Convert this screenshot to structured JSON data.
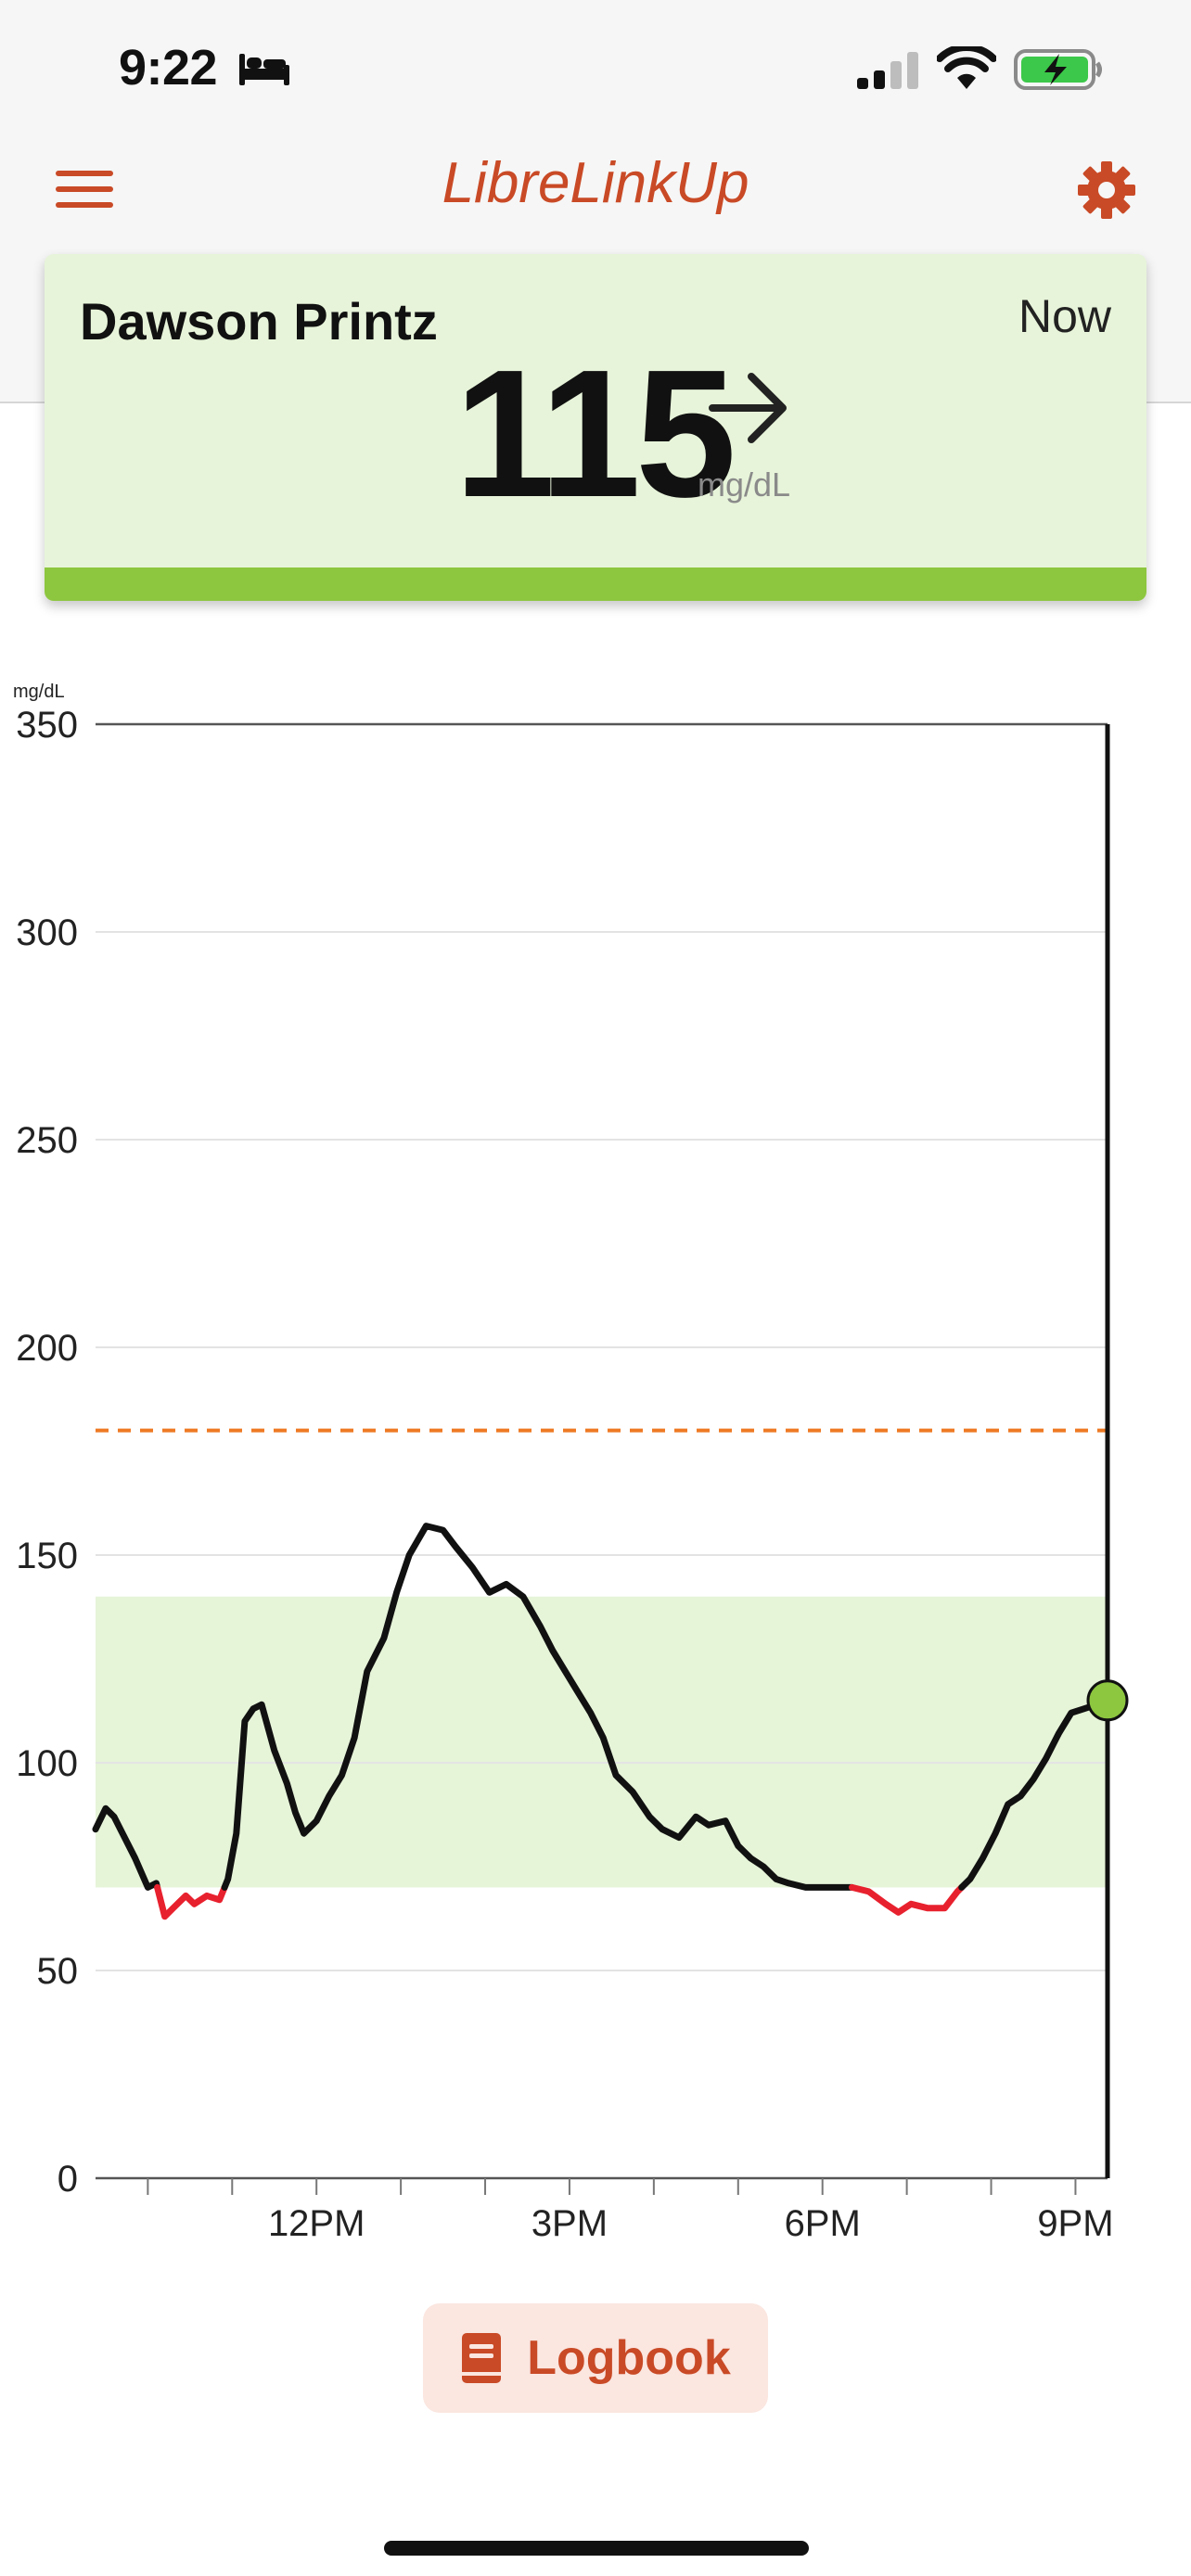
{
  "status_bar": {
    "time": "9:22",
    "icons": [
      "bed-icon",
      "signal-icon",
      "wifi-icon",
      "battery-charging-icon"
    ]
  },
  "nav": {
    "title": "LibreLinkUp",
    "icons": [
      "menu-icon",
      "settings-icon"
    ]
  },
  "colors": {
    "accent": "#c94a26",
    "in_range": "#8dc63f",
    "card_bg": "#e7f4d9",
    "target_band": "#e6f4d8",
    "low": "#e8212e",
    "high_limit": "#ee7a23",
    "line": "#111111"
  },
  "card": {
    "name": "Dawson Printz",
    "time": "Now",
    "value": "115",
    "unit": "mg/dL",
    "trend_icon": "arrow-right-icon"
  },
  "chart_data": {
    "type": "line",
    "ylabel": "mg/dL",
    "ylim": [
      0,
      350
    ],
    "yticks": [
      0,
      50,
      100,
      150,
      200,
      250,
      300,
      350
    ],
    "xlim": [
      9.38,
      21.38
    ],
    "xticks": [
      {
        "value": 12,
        "label": "12PM"
      },
      {
        "value": 15,
        "label": "3PM"
      },
      {
        "value": 18,
        "label": "6PM"
      },
      {
        "value": 21,
        "label": "9PM"
      }
    ],
    "minor_xticks": [
      10,
      11,
      13,
      14,
      16,
      17,
      19,
      20
    ],
    "target_range": [
      70,
      140
    ],
    "high_limit": 180,
    "low_limit": 70,
    "current": {
      "x": 21.38,
      "y": 115
    },
    "series": [
      {
        "x": [
          9.38,
          9.5,
          9.6,
          9.7,
          9.85,
          10.0,
          10.1,
          10.2,
          10.3,
          10.45,
          10.55,
          10.7,
          10.85,
          10.95,
          11.05,
          11.15,
          11.25,
          11.35,
          11.5,
          11.65,
          11.75,
          11.85,
          12.0,
          12.15,
          12.3,
          12.45,
          12.6,
          12.8,
          12.95,
          13.1,
          13.3,
          13.5,
          13.65,
          13.85,
          14.05,
          14.25,
          14.45,
          14.65,
          14.8,
          14.95,
          15.1,
          15.25,
          15.4,
          15.55,
          15.75,
          15.95,
          16.1,
          16.3,
          16.5,
          16.65,
          16.85,
          17.0,
          17.15,
          17.3,
          17.45,
          17.6,
          17.8,
          17.95,
          18.15,
          18.35,
          18.55,
          18.75,
          18.9,
          19.05,
          19.25,
          19.45,
          19.6,
          19.75,
          19.9,
          20.05,
          20.2,
          20.35,
          20.5,
          20.65,
          20.8,
          20.95,
          21.1,
          21.25,
          21.38
        ],
        "y": [
          84,
          89,
          87,
          83,
          77,
          70,
          71,
          63,
          65,
          68,
          66,
          68,
          67,
          72,
          83,
          110,
          113,
          114,
          103,
          95,
          88,
          83,
          86,
          92,
          97,
          106,
          122,
          130,
          141,
          150,
          157,
          156,
          152,
          147,
          141,
          143,
          140,
          133,
          127,
          122,
          117,
          112,
          106,
          97,
          93,
          87,
          84,
          82,
          87,
          85,
          86,
          80,
          77,
          75,
          72,
          71,
          70,
          70,
          70,
          70,
          69,
          66,
          64,
          66,
          65,
          65,
          69,
          72,
          77,
          83,
          90,
          92,
          96,
          101,
          107,
          112,
          113,
          114,
          115
        ]
      }
    ]
  },
  "logbook": {
    "label": "Logbook",
    "icon": "logbook-book-icon"
  }
}
